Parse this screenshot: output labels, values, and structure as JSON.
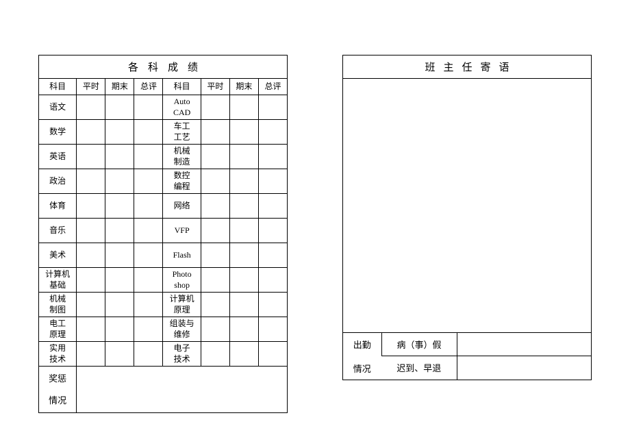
{
  "left": {
    "title": "各科成绩",
    "headers": [
      "科目",
      "平时",
      "期末",
      "总评",
      "科目",
      "平时",
      "期末",
      "总评"
    ],
    "rows": [
      {
        "s1": "语文",
        "s2": "Auto\nCAD"
      },
      {
        "s1": "数学",
        "s2": "车工\n工艺"
      },
      {
        "s1": "英语",
        "s2": "机械\n制造"
      },
      {
        "s1": "政治",
        "s2": "数控\n编程"
      },
      {
        "s1": "体育",
        "s2": "网络"
      },
      {
        "s1": "音乐",
        "s2": "VFP"
      },
      {
        "s1": "美术",
        "s2": "Flash"
      },
      {
        "s1": "计算机\n基础",
        "s2": "Photo\nshop"
      },
      {
        "s1": "机械\n制图",
        "s2": "计算机\n原理"
      },
      {
        "s1": "电工\n原理",
        "s2": "组装与\n维修"
      },
      {
        "s1": "实用\n技术",
        "s2": "电子\n技术"
      }
    ],
    "reward_label_l1": "奖惩",
    "reward_label_l2": "情况"
  },
  "right": {
    "title": "班主任寄语",
    "attend_label_l1": "出勤",
    "attend_label_l2": "情况",
    "attend_row1": "病（事）假",
    "attend_row2": "迟到、早退"
  },
  "style": {
    "border_color": "#000000",
    "bg": "#ffffff",
    "font": "SimSun",
    "title_fontsize": 15,
    "cell_fontsize": 12,
    "title_letter_spacing": 14
  }
}
